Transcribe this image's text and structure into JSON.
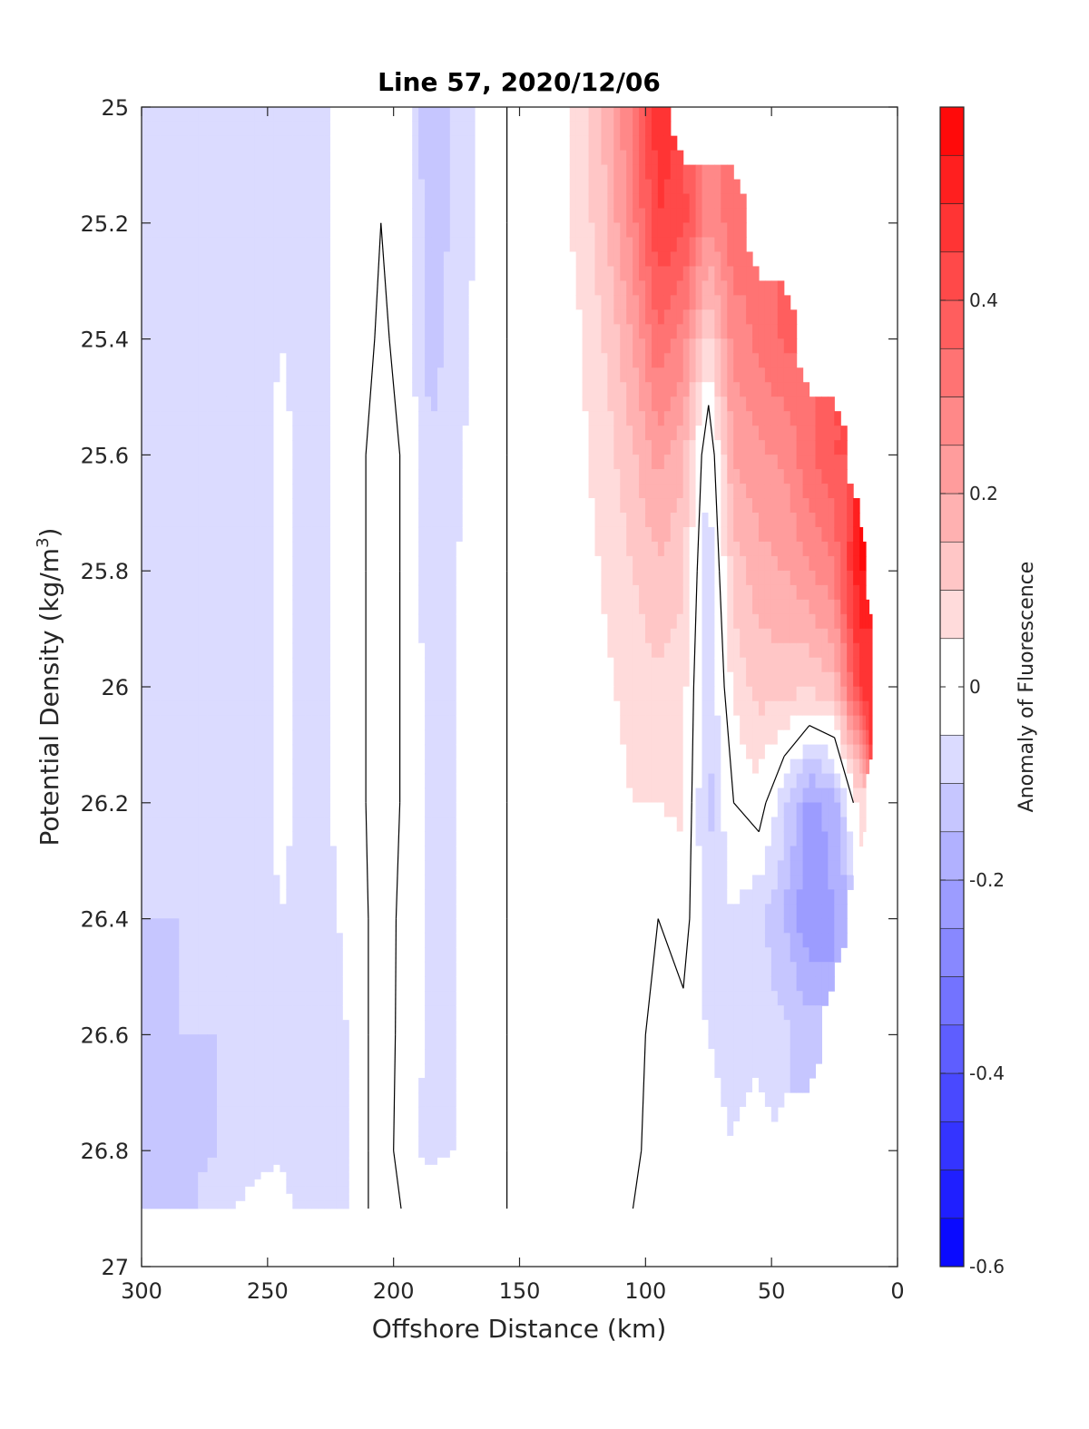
{
  "chart_data": {
    "type": "heatmap",
    "title": "Line 57, 2020/12/06",
    "xlabel": "Offshore Distance (km)",
    "ylabel": "Potential Density (kg/m³)",
    "ylabel_main": "Potential Density (kg/m",
    "ylabel_sup": "3",
    "ylabel_close": ")",
    "xlim": [
      300,
      0
    ],
    "ylim": [
      25,
      27
    ],
    "x_reversed": true,
    "y_reversed": true,
    "xticks": [
      300,
      250,
      200,
      150,
      100,
      50,
      0
    ],
    "xtick_labels": [
      "300",
      "250",
      "200",
      "150",
      "100",
      "50",
      "0"
    ],
    "yticks": [
      25,
      25.2,
      25.4,
      25.6,
      25.8,
      26,
      26.2,
      26.4,
      26.6,
      26.8,
      27
    ],
    "ytick_labels": [
      "25",
      "25.2",
      "25.4",
      "25.6",
      "25.8",
      "26",
      "26.2",
      "26.4",
      "26.6",
      "26.8",
      "27"
    ],
    "colorbar": {
      "label": "Anomaly of Fluorescence",
      "range": [
        -0.6,
        0.6
      ],
      "ticks": [
        -0.6,
        -0.4,
        -0.2,
        0,
        0.2,
        0.4
      ],
      "tick_labels": [
        "-0.6",
        "-0.4",
        "-0.2",
        "0",
        "0.2",
        "0.4"
      ],
      "levels": [
        -0.6,
        -0.55,
        -0.5,
        -0.45,
        -0.4,
        -0.35,
        -0.3,
        -0.25,
        -0.2,
        -0.15,
        -0.1,
        -0.05,
        0.05,
        0.1,
        0.15,
        0.2,
        0.25,
        0.3,
        0.35,
        0.4,
        0.45,
        0.5,
        0.55,
        0.6
      ],
      "colormap": "blue-white-red",
      "low_color": "#0000ff",
      "mid_color": "#ffffff",
      "high_color": "#ff0000"
    },
    "data_extent": {
      "x_range": [
        300,
        10
      ],
      "sigma_range": [
        25,
        26.9
      ]
    },
    "field": {
      "x": [
        300,
        285,
        270,
        255,
        245,
        235,
        225,
        215,
        205,
        195,
        185,
        175,
        165,
        155,
        145,
        135,
        125,
        115,
        105,
        95,
        85,
        75,
        65,
        55,
        45,
        35,
        25,
        15,
        10
      ],
      "sigma": [
        25.0,
        25.2,
        25.4,
        25.6,
        25.8,
        26.0,
        26.2,
        26.4,
        26.6,
        26.8,
        26.9
      ],
      "values": [
        [
          -0.1,
          -0.1,
          -0.1,
          -0.09,
          -0.09,
          -0.09,
          -0.1,
          -0.1,
          -0.11,
          -0.11,
          -0.12
        ],
        [
          -0.1,
          -0.09,
          -0.09,
          -0.08,
          -0.08,
          -0.09,
          -0.09,
          -0.1,
          -0.1,
          -0.11,
          -0.12
        ],
        [
          -0.09,
          -0.09,
          -0.09,
          -0.08,
          -0.08,
          -0.08,
          -0.09,
          -0.09,
          -0.1,
          -0.1,
          -0.08
        ],
        [
          -0.09,
          -0.09,
          -0.08,
          -0.08,
          -0.08,
          -0.08,
          -0.08,
          -0.08,
          -0.08,
          -0.08,
          -0.02
        ],
        [
          -0.05,
          -0.05,
          -0.05,
          -0.04,
          -0.04,
          -0.04,
          -0.04,
          -0.05,
          -0.06,
          -0.06,
          -0.02
        ],
        [
          -0.07,
          -0.07,
          -0.06,
          -0.06,
          -0.06,
          -0.06,
          -0.06,
          -0.06,
          -0.07,
          -0.08,
          -0.08
        ],
        [
          -0.05,
          -0.05,
          -0.05,
          -0.05,
          -0.05,
          -0.05,
          -0.05,
          -0.06,
          -0.07,
          -0.08,
          -0.09
        ],
        [
          -0.03,
          -0.03,
          -0.03,
          -0.02,
          -0.02,
          -0.02,
          -0.02,
          -0.03,
          -0.04,
          -0.04,
          -0.04
        ],
        [
          0.0,
          0.0,
          0.01,
          0.03,
          0.03,
          0.03,
          0.03,
          0.03,
          0.04,
          0.04,
          0.04
        ],
        [
          -0.02,
          -0.02,
          -0.02,
          -0.01,
          -0.01,
          -0.01,
          -0.01,
          -0.02,
          -0.03,
          -0.04,
          -0.01
        ],
        [
          -0.16,
          -0.14,
          -0.13,
          -0.09,
          -0.08,
          -0.07,
          -0.07,
          -0.06,
          -0.06,
          -0.06,
          -0.02
        ],
        [
          -0.08,
          -0.08,
          -0.07,
          -0.06,
          -0.05,
          -0.05,
          -0.05,
          -0.05,
          -0.05,
          -0.05,
          -0.02
        ],
        [
          -0.04,
          -0.04,
          -0.03,
          -0.03,
          -0.03,
          -0.03,
          -0.02,
          -0.02,
          -0.02,
          -0.02,
          -0.02
        ],
        [
          0.0,
          0.0,
          0.0,
          0.0,
          0.0,
          0.0,
          0.0,
          0.0,
          0.0,
          0.0,
          0.0
        ],
        [
          0.01,
          0.01,
          0.01,
          0.01,
          0.01,
          0.01,
          0.01,
          0.01,
          0.01,
          0.01,
          0.01
        ],
        [
          0.03,
          0.03,
          0.02,
          0.02,
          0.02,
          0.02,
          0.01,
          0.01,
          0.01,
          0.01,
          0.01
        ],
        [
          0.08,
          0.07,
          0.05,
          0.04,
          0.03,
          0.03,
          0.02,
          0.02,
          0.01,
          0.01,
          0.01
        ],
        [
          0.17,
          0.15,
          0.11,
          0.08,
          0.06,
          0.04,
          0.03,
          0.02,
          0.02,
          0.02,
          0.02
        ],
        [
          0.32,
          0.28,
          0.2,
          0.14,
          0.1,
          0.07,
          0.05,
          0.02,
          0.01,
          0.01,
          0.0
        ],
        [
          0.48,
          0.45,
          0.34,
          0.22,
          0.14,
          0.09,
          0.05,
          0.0,
          -0.01,
          -0.02,
          -0.02
        ],
        [
          null,
          0.42,
          0.28,
          0.16,
          0.11,
          0.07,
          0.06,
          0.03,
          -0.02,
          -0.03,
          -0.04
        ],
        [
          null,
          0.26,
          0.08,
          -0.06,
          -0.09,
          -0.1,
          -0.12,
          -0.09,
          -0.05,
          -0.04,
          -0.04
        ],
        [
          null,
          0.33,
          0.28,
          0.2,
          0.12,
          0.06,
          0.0,
          -0.05,
          -0.06,
          -0.05,
          -0.05
        ],
        [
          null,
          null,
          0.31,
          0.24,
          0.18,
          0.12,
          0.03,
          -0.09,
          -0.06,
          -0.03,
          null
        ],
        [
          null,
          null,
          0.36,
          0.26,
          0.2,
          0.12,
          -0.08,
          -0.15,
          -0.09,
          null,
          null
        ],
        [
          null,
          null,
          null,
          0.34,
          0.24,
          0.11,
          -0.22,
          -0.25,
          -0.12,
          null,
          null
        ],
        [
          null,
          null,
          null,
          0.4,
          0.3,
          0.14,
          -0.18,
          -0.2,
          null,
          null,
          null
        ],
        [
          null,
          null,
          null,
          null,
          0.55,
          0.45,
          0.06,
          null,
          null,
          null,
          null
        ],
        [
          null,
          null,
          null,
          null,
          null,
          0.5,
          null,
          null,
          null,
          null,
          null
        ]
      ]
    },
    "zero_contour_level": 0,
    "contour_color": "#000000",
    "grid": false,
    "colorbar_position": "right"
  }
}
